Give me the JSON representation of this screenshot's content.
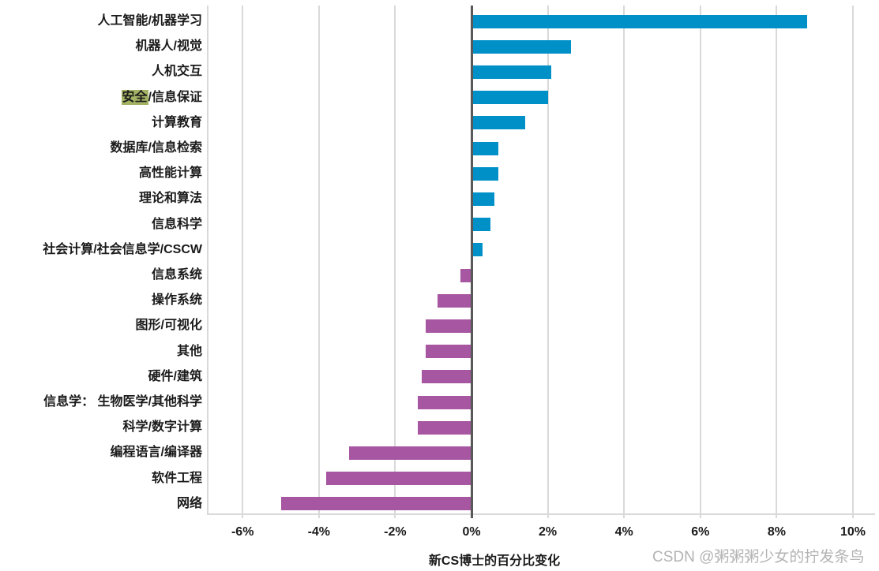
{
  "chart_data": {
    "type": "bar",
    "orientation": "horizontal",
    "title": "",
    "xlabel": "新CS博士的百分比变化",
    "ylabel": "",
    "categories": [
      "人工智能/机器学习",
      "机器人/视觉",
      "人机交互",
      "安全/信息保证",
      "计算教育",
      "数据库/信息检索",
      "高性能计算",
      "理论和算法",
      "信息科学",
      "社会计算/社会信息学/CSCW",
      "信息系统",
      "操作系统",
      "图形/可视化",
      "其他",
      "硬件/建筑",
      "信息学： 生物医学/其他科学",
      "科学/数字计算",
      "编程语言/编译器",
      "软件工程",
      "网络"
    ],
    "values": [
      8.8,
      2.6,
      2.1,
      2.0,
      1.4,
      0.7,
      0.7,
      0.6,
      0.5,
      0.3,
      -0.3,
      -0.9,
      -1.2,
      -1.2,
      -1.3,
      -1.4,
      -1.4,
      -3.2,
      -3.8,
      -5.0
    ],
    "value_unit": "%",
    "xlim": [
      -7,
      10.7
    ],
    "x_ticks": {
      "values": [
        -6,
        -4,
        -2,
        0,
        2,
        4,
        6,
        8,
        10
      ],
      "labels": [
        "-6%",
        "-4%",
        "-2%",
        "0%",
        "2%",
        "4%",
        "6%",
        "8%",
        "10%"
      ]
    },
    "grid": "vertical-on",
    "legend": "none",
    "highlight": {
      "index": 3,
      "text": "安全",
      "rest": "/信息保证",
      "bg_color": "#a4b264",
      "text_color": "#1a1a1a"
    },
    "colors": {
      "positive_bar": "#0090c8",
      "negative_bar": "#a757a1",
      "gridline": "#d9d9d9",
      "zero_line": "#595959",
      "label_text": "#1a1a1a"
    }
  },
  "watermark": {
    "text": "CSDN @粥粥粥少女的拧发条鸟",
    "color": "#b3b3b3"
  }
}
